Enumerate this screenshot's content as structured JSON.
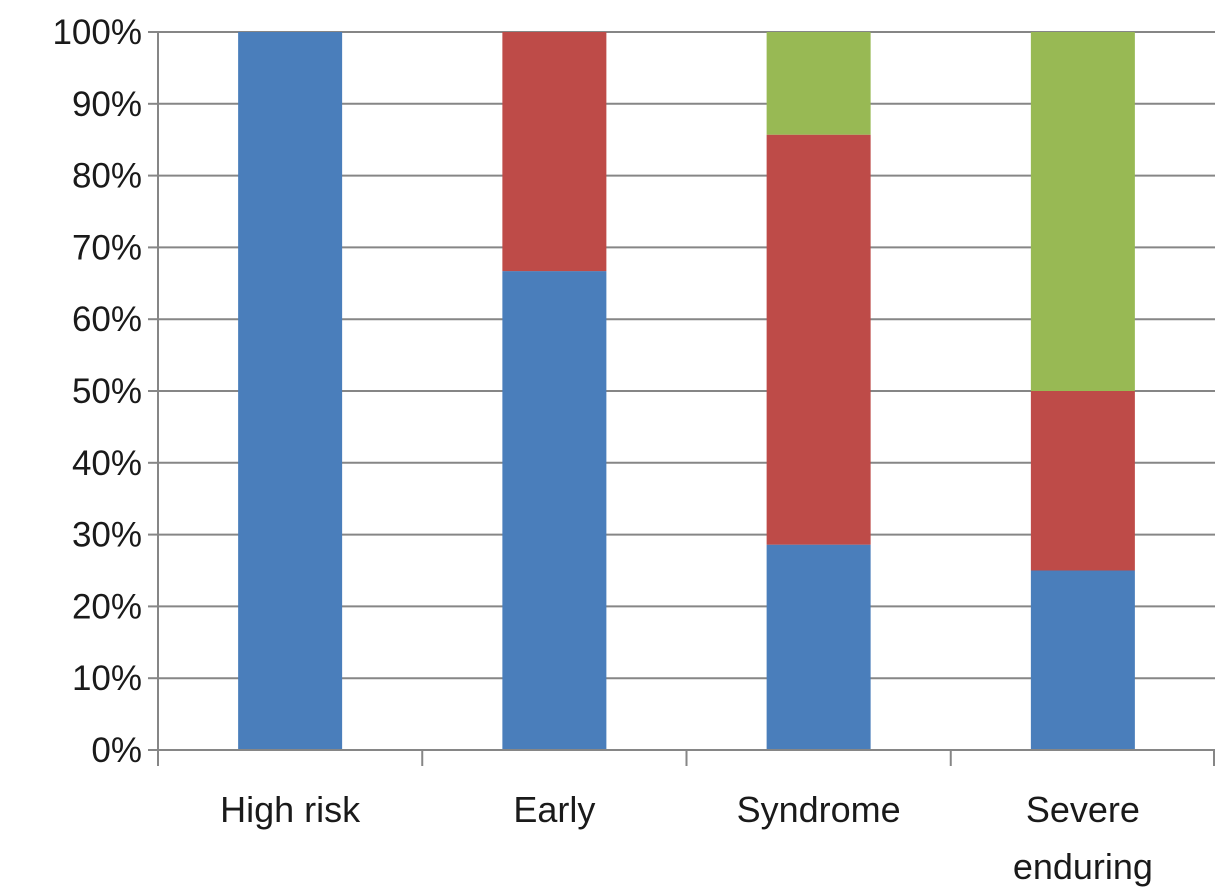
{
  "chart_data": {
    "type": "bar",
    "stacked": true,
    "percent": true,
    "categories": [
      [
        "High risk"
      ],
      [
        "Early"
      ],
      [
        "Syndrome"
      ],
      [
        "Severe",
        "enduring"
      ]
    ],
    "series": [
      {
        "color": "#4a7ebb",
        "values": [
          100,
          66.7,
          28.6,
          25
        ]
      },
      {
        "color": "#be4b48",
        "values": [
          0,
          33.3,
          57.1,
          25
        ]
      },
      {
        "color": "#98b954",
        "values": [
          0,
          0,
          14.3,
          50
        ]
      }
    ],
    "yticks": [
      "0%",
      "10%",
      "20%",
      "30%",
      "40%",
      "50%",
      "60%",
      "70%",
      "80%",
      "90%",
      "100%"
    ],
    "ylim": [
      0,
      100
    ],
    "grid": true,
    "legend": "none",
    "title": "",
    "xlabel": "",
    "ylabel": ""
  }
}
